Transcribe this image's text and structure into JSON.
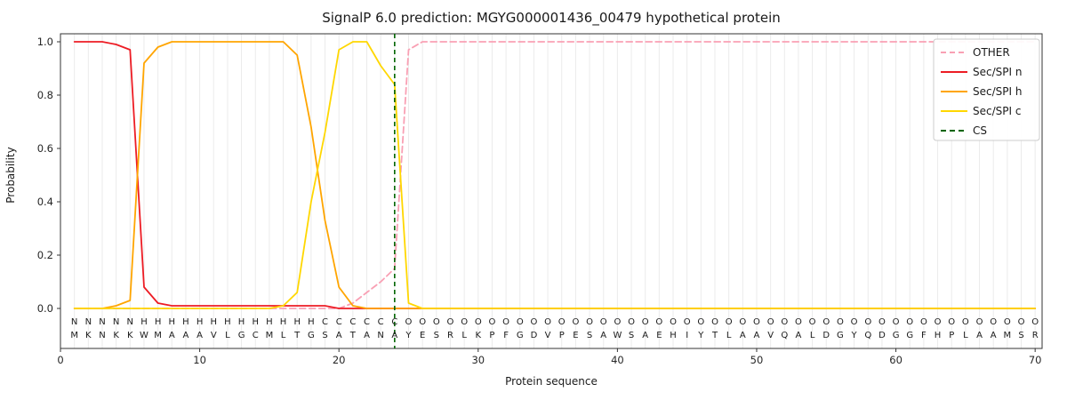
{
  "title": "SignalP 6.0 prediction: MGYG000001436_00479 hypothetical protein",
  "axes": {
    "xlabel": "Protein sequence",
    "ylabel": "Probability",
    "x_ticks": [
      0,
      10,
      20,
      30,
      40,
      50,
      60,
      70
    ],
    "y_ticks": [
      "0.0",
      "0.2",
      "0.4",
      "0.6",
      "0.8",
      "1.0"
    ],
    "xlim": [
      0,
      70.5
    ],
    "ylim": [
      -0.15,
      1.03
    ],
    "grid": "vertical-minor-per-residue"
  },
  "colors": {
    "grid": "#ebebeb",
    "frame": "#333333",
    "tick_text": "#262626",
    "aa_text": "#1a1a1a",
    "background": "#ffffff"
  },
  "legend": {
    "position": "upper-right",
    "items": [
      {
        "label": "OTHER",
        "color": "#f9a0b4",
        "dash": true
      },
      {
        "label": "Sec/SPI n",
        "color": "#ed1c24",
        "dash": false
      },
      {
        "label": "Sec/SPI h",
        "color": "#ffa500",
        "dash": false
      },
      {
        "label": "Sec/SPI c",
        "color": "#ffd700",
        "dash": false
      },
      {
        "label": "CS",
        "color": "#006400",
        "dash": true
      }
    ]
  },
  "chart_data": {
    "type": "line",
    "title": "SignalP 6.0 prediction: MGYG000001436_00479 hypothetical protein",
    "xlabel": "Protein sequence",
    "ylabel": "Probability",
    "x_positions": "1..70 (one point per residue)",
    "sequence": "MKNKKWMAAAVLGCMLTGSATANAYESRLKPFGDVPESAWSAEHIYTLAAVQALDGYQDGGFHPLAAMSR",
    "region_labels": "NNNNNHHHHHHHHHHHHHCCCCCCOOOOOOOOOOOOOOOOOOOOOOOOOOOOOOOOOOOOOOOOOOOOOO",
    "region_colors": {
      "N": "#ed1c24",
      "H": "#ffa500",
      "C": "#ffd700",
      "O": "#a9a9a9"
    },
    "cs_line": {
      "name": "CS",
      "position": 24,
      "color": "#006400",
      "dash": true
    },
    "series": [
      {
        "name": "OTHER",
        "color": "#f9a0b4",
        "dash": true,
        "values": [
          0,
          0,
          0,
          0,
          0,
          0,
          0,
          0,
          0,
          0,
          0,
          0,
          0,
          0,
          0,
          0,
          0,
          0,
          0,
          0,
          0.02,
          0.06,
          0.1,
          0.15,
          0.97,
          1,
          1,
          1,
          1,
          1,
          1,
          1,
          1,
          1,
          1,
          1,
          1,
          1,
          1,
          1,
          1,
          1,
          1,
          1,
          1,
          1,
          1,
          1,
          1,
          1,
          1,
          1,
          1,
          1,
          1,
          1,
          1,
          1,
          1,
          1,
          1,
          1,
          1,
          1,
          1,
          1,
          1,
          1,
          1,
          1
        ]
      },
      {
        "name": "Sec/SPI n",
        "color": "#ed1c24",
        "dash": false,
        "values": [
          1,
          1,
          1,
          0.99,
          0.97,
          0.08,
          0.02,
          0.01,
          0.01,
          0.01,
          0.01,
          0.01,
          0.01,
          0.01,
          0.01,
          0.01,
          0.01,
          0.01,
          0.01,
          0,
          0,
          0,
          0,
          0,
          0,
          0,
          0,
          0,
          0,
          0,
          0,
          0,
          0,
          0,
          0,
          0,
          0,
          0,
          0,
          0,
          0,
          0,
          0,
          0,
          0,
          0,
          0,
          0,
          0,
          0,
          0,
          0,
          0,
          0,
          0,
          0,
          0,
          0,
          0,
          0,
          0,
          0,
          0,
          0,
          0,
          0,
          0,
          0,
          0,
          0
        ]
      },
      {
        "name": "Sec/SPI h",
        "color": "#ffa500",
        "dash": false,
        "values": [
          0,
          0,
          0,
          0.01,
          0.03,
          0.92,
          0.98,
          1,
          1,
          1,
          1,
          1,
          1,
          1,
          1,
          1,
          0.95,
          0.68,
          0.33,
          0.08,
          0.01,
          0,
          0,
          0,
          0,
          0,
          0,
          0,
          0,
          0,
          0,
          0,
          0,
          0,
          0,
          0,
          0,
          0,
          0,
          0,
          0,
          0,
          0,
          0,
          0,
          0,
          0,
          0,
          0,
          0,
          0,
          0,
          0,
          0,
          0,
          0,
          0,
          0,
          0,
          0,
          0,
          0,
          0,
          0,
          0,
          0,
          0,
          0,
          0,
          0
        ]
      },
      {
        "name": "Sec/SPI c",
        "color": "#ffd700",
        "dash": false,
        "values": [
          0,
          0,
          0,
          0,
          0,
          0,
          0,
          0,
          0,
          0,
          0,
          0,
          0,
          0,
          0,
          0.01,
          0.06,
          0.4,
          0.66,
          0.97,
          1,
          1,
          0.91,
          0.84,
          0.02,
          0,
          0,
          0,
          0,
          0,
          0,
          0,
          0,
          0,
          0,
          0,
          0,
          0,
          0,
          0,
          0,
          0,
          0,
          0,
          0,
          0,
          0,
          0,
          0,
          0,
          0,
          0,
          0,
          0,
          0,
          0,
          0,
          0,
          0,
          0,
          0,
          0,
          0,
          0,
          0,
          0,
          0,
          0,
          0,
          0
        ]
      }
    ]
  }
}
